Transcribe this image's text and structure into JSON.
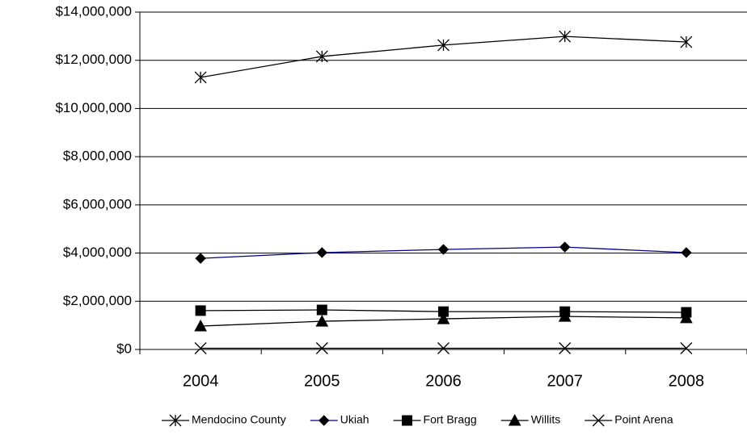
{
  "chart_data": {
    "type": "line",
    "categories": [
      "2004",
      "2005",
      "2006",
      "2007",
      "2008"
    ],
    "series": [
      {
        "name": "Mendocino County",
        "color": "#000000",
        "marker": "asterisk",
        "values": [
          11290000,
          12160000,
          12630000,
          12990000,
          12760000
        ]
      },
      {
        "name": "Ukiah",
        "color": "#000080",
        "marker": "diamond",
        "values": [
          3780000,
          4020000,
          4150000,
          4250000,
          4020000
        ]
      },
      {
        "name": "Fort Bragg",
        "color": "#000000",
        "marker": "square",
        "values": [
          1610000,
          1640000,
          1570000,
          1570000,
          1540000
        ]
      },
      {
        "name": "Willits",
        "color": "#000000",
        "marker": "triangle",
        "values": [
          970000,
          1170000,
          1270000,
          1370000,
          1310000
        ]
      },
      {
        "name": "Point Arena",
        "color": "#000000",
        "marker": "x",
        "values": [
          50000,
          50000,
          50000,
          50000,
          50000
        ]
      }
    ],
    "ylim": [
      0,
      14000000
    ],
    "yticks": [
      {
        "value": 0,
        "label": "$0"
      },
      {
        "value": 2000000,
        "label": "$2,000,000"
      },
      {
        "value": 4000000,
        "label": "$4,000,000"
      },
      {
        "value": 6000000,
        "label": "$6,000,000"
      },
      {
        "value": 8000000,
        "label": "$8,000,000"
      },
      {
        "value": 10000000,
        "label": "$10,000,000"
      },
      {
        "value": 12000000,
        "label": "$12,000,000"
      },
      {
        "value": 14000000,
        "label": "$14,000,000"
      }
    ],
    "grid": true,
    "legend": "bottom"
  }
}
